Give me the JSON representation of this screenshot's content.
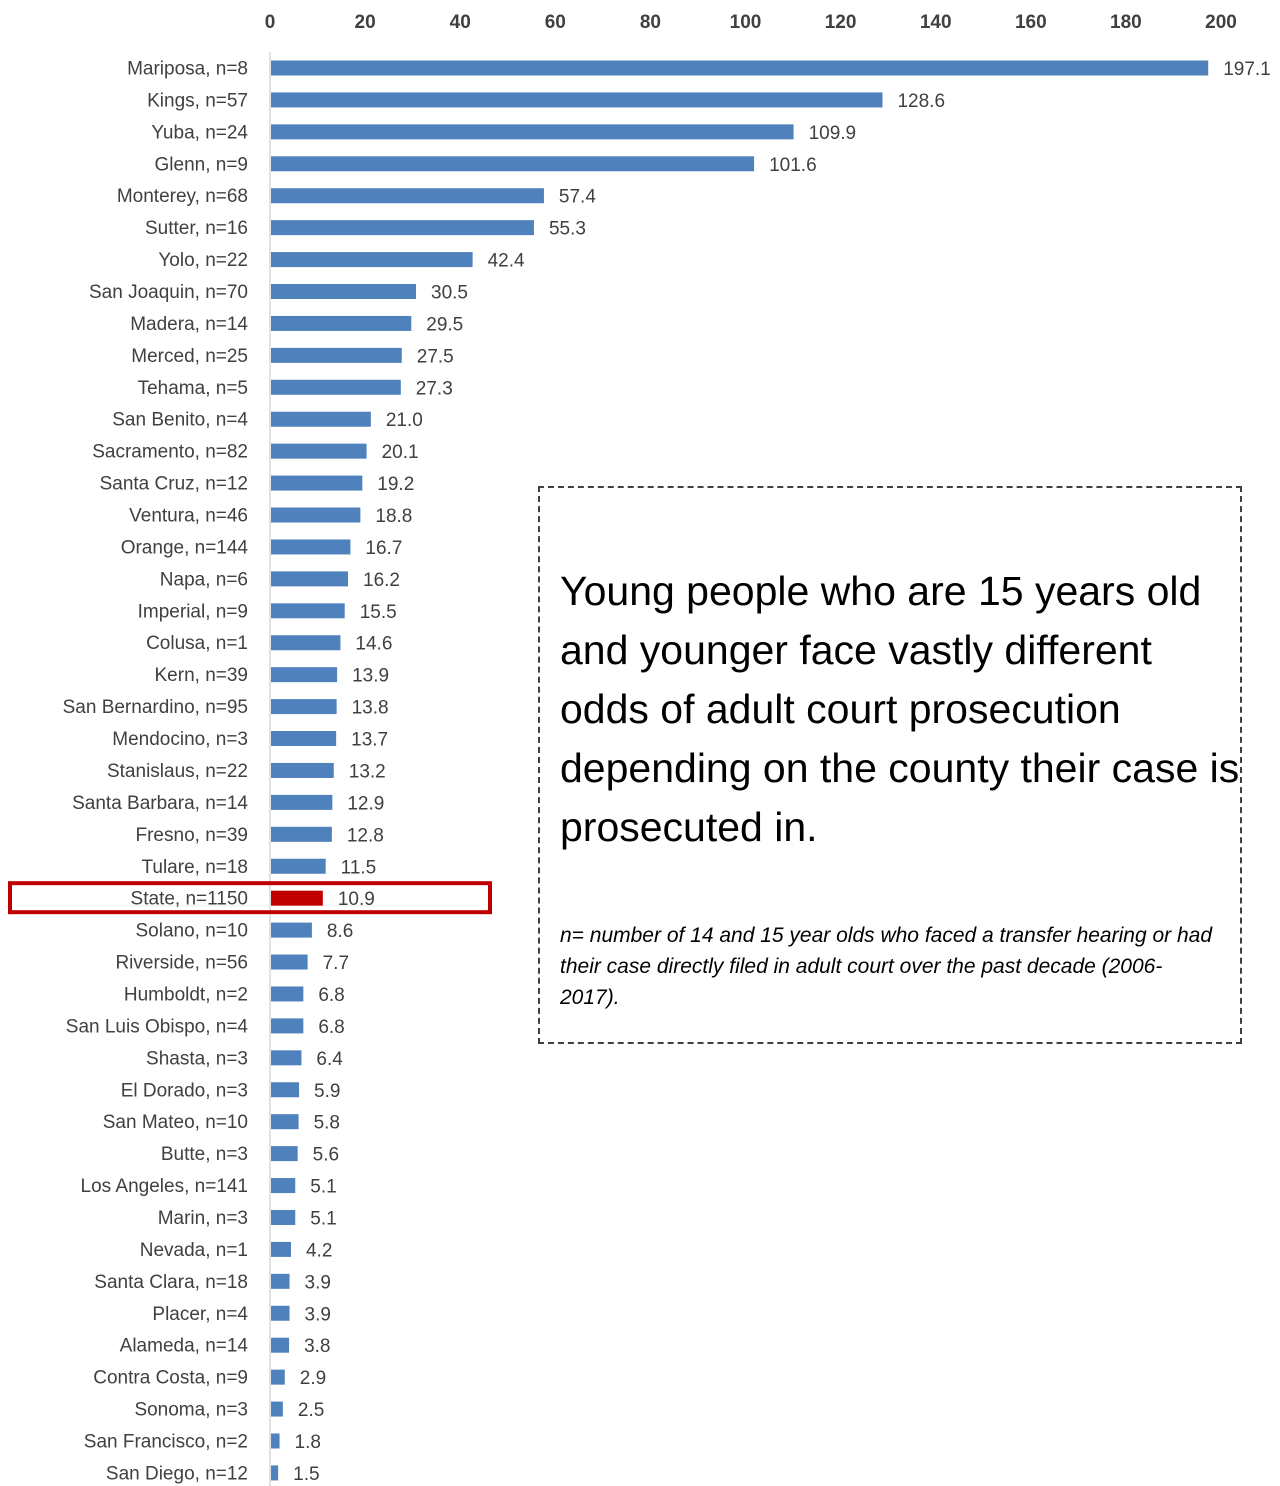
{
  "chart_data": {
    "type": "bar",
    "orientation": "horizontal",
    "title": "",
    "xlabel": "",
    "ylabel": "",
    "xlim": [
      0,
      200
    ],
    "ticks": [
      "0",
      "20",
      "40",
      "60",
      "80",
      "100",
      "120",
      "140",
      "160",
      "180",
      "200"
    ],
    "grid": false,
    "colors": {
      "bar": "#4f81bd",
      "highlight": "#c00000",
      "highlight_box": "#c00000"
    },
    "highlight_category": "State, n=1150",
    "categories": [
      "Mariposa, n=8",
      "Kings, n=57",
      "Yuba, n=24",
      "Glenn, n=9",
      "Monterey, n=68",
      "Sutter, n=16",
      "Yolo, n=22",
      "San Joaquin, n=70",
      "Madera, n=14",
      "Merced, n=25",
      "Tehama, n=5",
      "San Benito, n=4",
      "Sacramento, n=82",
      "Santa Cruz, n=12",
      "Ventura, n=46",
      "Orange, n=144",
      "Napa, n=6",
      "Imperial, n=9",
      "Colusa, n=1",
      "Kern, n=39",
      "San Bernardino, n=95",
      "Mendocino, n=3",
      "Stanislaus, n=22",
      "Santa Barbara, n=14",
      "Fresno, n=39",
      "Tulare, n=18",
      "State, n=1150",
      "Solano, n=10",
      "Riverside, n=56",
      "Humboldt, n=2",
      "San Luis Obispo, n=4",
      "Shasta, n=3",
      "El Dorado, n=3",
      "San Mateo, n=10",
      "Butte, n=3",
      "Los Angeles, n=141",
      "Marin, n=3",
      "Nevada, n=1",
      "Santa Clara, n=18",
      "Placer, n=4",
      "Alameda, n=14",
      "Contra Costa, n=9",
      "Sonoma, n=3",
      "San Francisco, n=2",
      "San Diego, n=12"
    ],
    "values": [
      197.1,
      128.6,
      109.9,
      101.6,
      57.4,
      55.3,
      42.4,
      30.5,
      29.5,
      27.5,
      27.3,
      21.0,
      20.1,
      19.2,
      18.8,
      16.7,
      16.2,
      15.5,
      14.6,
      13.9,
      13.8,
      13.7,
      13.2,
      12.9,
      12.8,
      11.5,
      10.9,
      8.6,
      7.7,
      6.8,
      6.8,
      6.4,
      5.9,
      5.8,
      5.6,
      5.1,
      5.1,
      4.2,
      3.9,
      3.9,
      3.8,
      2.9,
      2.5,
      1.8,
      1.5
    ],
    "value_labels": [
      "197.1",
      "128.6",
      "109.9",
      "101.6",
      "57.4",
      "55.3",
      "42.4",
      "30.5",
      "29.5",
      "27.5",
      "27.3",
      "21.0",
      "20.1",
      "19.2",
      "18.8",
      "16.7",
      "16.2",
      "15.5",
      "14.6",
      "13.9",
      "13.8",
      "13.7",
      "13.2",
      "12.9",
      "12.8",
      "11.5",
      "10.9",
      "8.6",
      "7.7",
      "6.8",
      "6.8",
      "6.4",
      "5.9",
      "5.8",
      "5.6",
      "5.1",
      "5.1",
      "4.2",
      "3.9",
      "3.9",
      "3.8",
      "2.9",
      "2.5",
      "1.8",
      "1.5"
    ]
  },
  "note": {
    "headline": "Young people who are 15 years old and younger face vastly different odds of adult court prosecution depending on the county their case is prosecuted in.",
    "footnote": "n= number of 14 and 15 year olds who faced a transfer hearing or had their case directly filed in adult court over the past decade (2006-2017)."
  }
}
